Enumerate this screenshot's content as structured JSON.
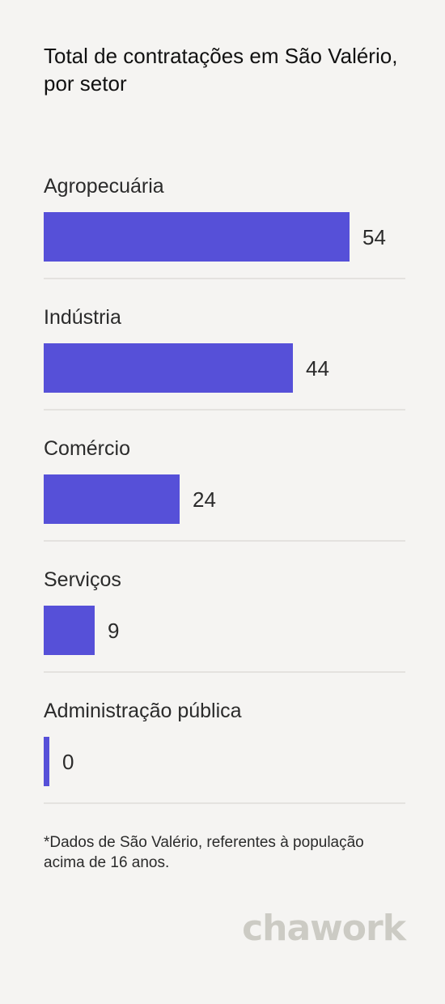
{
  "title": "Total de contratações em São Valério, por setor",
  "footnote": "*Dados de São Valério, referentes à população acima de 16 anos.",
  "brand": "chawork",
  "colors": {
    "bar": "#5650d8",
    "background": "#f5f4f2",
    "divider": "#e4e2df",
    "logo": "#cccbc4"
  },
  "chart_data": {
    "type": "bar",
    "orientation": "horizontal",
    "categories": [
      "Agropecuária",
      "Indústria",
      "Comércio",
      "Serviços",
      "Administração pública"
    ],
    "values": [
      54,
      44,
      24,
      9,
      0
    ],
    "xlim": [
      0,
      60
    ],
    "grid": false,
    "legend": "none"
  }
}
